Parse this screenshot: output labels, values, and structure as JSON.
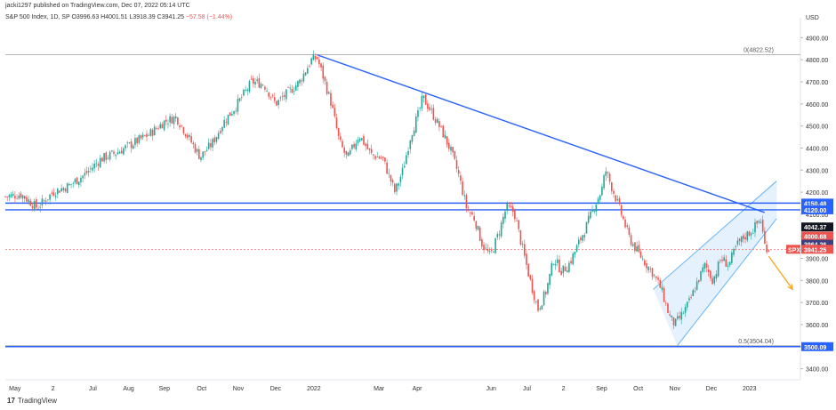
{
  "header": {
    "published": "jacki1297 published on TradingView.com, Dec 07, 2022 05:14 UTC"
  },
  "legend": {
    "symbol": "S&P 500 Index, 1D, SP",
    "o": "O3996.63",
    "h": "H4001.51",
    "l": "L3918.39",
    "c": "C3941.25",
    "chg": "−57.58 (−1.44%)"
  },
  "footer": {
    "brand": "TradingView"
  },
  "colors": {
    "up": "#26a69a",
    "down": "#ef5350",
    "trendline": "#2962ff",
    "channel_fill": "#cfe8fb",
    "arrow": "#f5a623",
    "fib": "#9e9e9e"
  },
  "chart_data": {
    "type": "candlestick",
    "symbol": "SPX",
    "currency": "USD",
    "ylim": [
      3350,
      4950
    ],
    "y_ticks": [
      3400,
      3500,
      3600,
      3700,
      3800,
      3900,
      4000,
      4100,
      4200,
      4300,
      4400,
      4500,
      4600,
      4700,
      4800,
      4900
    ],
    "x_ticks": [
      {
        "label": "May",
        "t": 0.012
      },
      {
        "label": "2",
        "t": 0.06
      },
      {
        "label": "Jul",
        "t": 0.11
      },
      {
        "label": "Aug",
        "t": 0.155
      },
      {
        "label": "Sep",
        "t": 0.2
      },
      {
        "label": "Oct",
        "t": 0.247
      },
      {
        "label": "Nov",
        "t": 0.293
      },
      {
        "label": "Dec",
        "t": 0.34
      },
      {
        "label": "2022",
        "t": 0.388
      },
      {
        "label": "Mar",
        "t": 0.47
      },
      {
        "label": "Apr",
        "t": 0.518
      },
      {
        "label": "Jun",
        "t": 0.611
      },
      {
        "label": "Jul",
        "t": 0.656
      },
      {
        "label": "2",
        "t": 0.702
      },
      {
        "label": "Sep",
        "t": 0.75
      },
      {
        "label": "Oct",
        "t": 0.796
      },
      {
        "label": "Nov",
        "t": 0.842
      },
      {
        "label": "Dec",
        "t": 0.888
      },
      {
        "label": "2023",
        "t": 0.936
      }
    ],
    "price_path": [
      [
        0.0,
        4180
      ],
      [
        0.02,
        4190
      ],
      [
        0.04,
        4130
      ],
      [
        0.06,
        4200
      ],
      [
        0.08,
        4230
      ],
      [
        0.1,
        4280
      ],
      [
        0.12,
        4350
      ],
      [
        0.14,
        4380
      ],
      [
        0.16,
        4420
      ],
      [
        0.18,
        4460
      ],
      [
        0.2,
        4520
      ],
      [
        0.215,
        4540
      ],
      [
        0.23,
        4450
      ],
      [
        0.245,
        4360
      ],
      [
        0.26,
        4420
      ],
      [
        0.275,
        4520
      ],
      [
        0.29,
        4590
      ],
      [
        0.31,
        4700
      ],
      [
        0.325,
        4690
      ],
      [
        0.34,
        4600
      ],
      [
        0.355,
        4650
      ],
      [
        0.37,
        4700
      ],
      [
        0.385,
        4800
      ],
      [
        0.392,
        4810
      ],
      [
        0.4,
        4720
      ],
      [
        0.41,
        4600
      ],
      [
        0.42,
        4430
      ],
      [
        0.43,
        4350
      ],
      [
        0.445,
        4460
      ],
      [
        0.46,
        4370
      ],
      [
        0.475,
        4350
      ],
      [
        0.49,
        4200
      ],
      [
        0.5,
        4300
      ],
      [
        0.51,
        4460
      ],
      [
        0.52,
        4560
      ],
      [
        0.525,
        4630
      ],
      [
        0.535,
        4570
      ],
      [
        0.55,
        4470
      ],
      [
        0.56,
        4390
      ],
      [
        0.57,
        4280
      ],
      [
        0.58,
        4130
      ],
      [
        0.59,
        4080
      ],
      [
        0.6,
        3960
      ],
      [
        0.61,
        3910
      ],
      [
        0.62,
        4010
      ],
      [
        0.63,
        4130
      ],
      [
        0.64,
        4110
      ],
      [
        0.65,
        3950
      ],
      [
        0.66,
        3800
      ],
      [
        0.67,
        3670
      ],
      [
        0.68,
        3750
      ],
      [
        0.69,
        3900
      ],
      [
        0.7,
        3840
      ],
      [
        0.71,
        3880
      ],
      [
        0.72,
        3960
      ],
      [
        0.73,
        4040
      ],
      [
        0.74,
        4130
      ],
      [
        0.75,
        4210
      ],
      [
        0.755,
        4300
      ],
      [
        0.765,
        4200
      ],
      [
        0.775,
        4100
      ],
      [
        0.785,
        3990
      ],
      [
        0.795,
        3930
      ],
      [
        0.805,
        3880
      ],
      [
        0.815,
        3830
      ],
      [
        0.825,
        3760
      ],
      [
        0.835,
        3640
      ],
      [
        0.842,
        3600
      ],
      [
        0.85,
        3640
      ],
      [
        0.86,
        3700
      ],
      [
        0.87,
        3790
      ],
      [
        0.88,
        3870
      ],
      [
        0.89,
        3800
      ],
      [
        0.9,
        3900
      ],
      [
        0.91,
        3870
      ],
      [
        0.92,
        3960
      ],
      [
        0.93,
        4000
      ],
      [
        0.94,
        4030
      ],
      [
        0.95,
        4080
      ],
      [
        0.955,
        3960
      ],
      [
        0.96,
        3941.25
      ]
    ],
    "annotations": {
      "hlines": [
        {
          "value": 4150.48,
          "label": "4150.48"
        },
        {
          "value": 4120.0,
          "label": "4120.00"
        },
        {
          "value": 3500.09,
          "label": "3500.09"
        }
      ],
      "fib_levels": [
        {
          "value": 4822.52,
          "label": "0(4822.52)"
        },
        {
          "value": 3504.04,
          "label": "0.5(3504.04)"
        }
      ],
      "price_labels": [
        {
          "value": 4042.37,
          "label": "4042.37",
          "color": "#131722"
        },
        {
          "value": 4000.68,
          "label": "4000.68",
          "color": "#ef5350"
        },
        {
          "value": 3964.26,
          "label": "3964.26",
          "color": "#3f3f7f"
        },
        {
          "value": 3941.25,
          "label": "3941.25",
          "color": "#ef5350",
          "symbol": "SPX"
        }
      ],
      "trendline": {
        "from": [
          0.392,
          4822.52
        ],
        "to": [
          0.955,
          4108
        ]
      },
      "channel": {
        "lower": [
          [
            0.845,
            3504
          ],
          [
            0.97,
            4080
          ]
        ],
        "upper": [
          [
            0.815,
            3760
          ],
          [
            0.97,
            4250
          ]
        ]
      },
      "arrow": {
        "from": [
          0.96,
          3910
        ],
        "to": [
          0.99,
          3760
        ]
      }
    }
  }
}
